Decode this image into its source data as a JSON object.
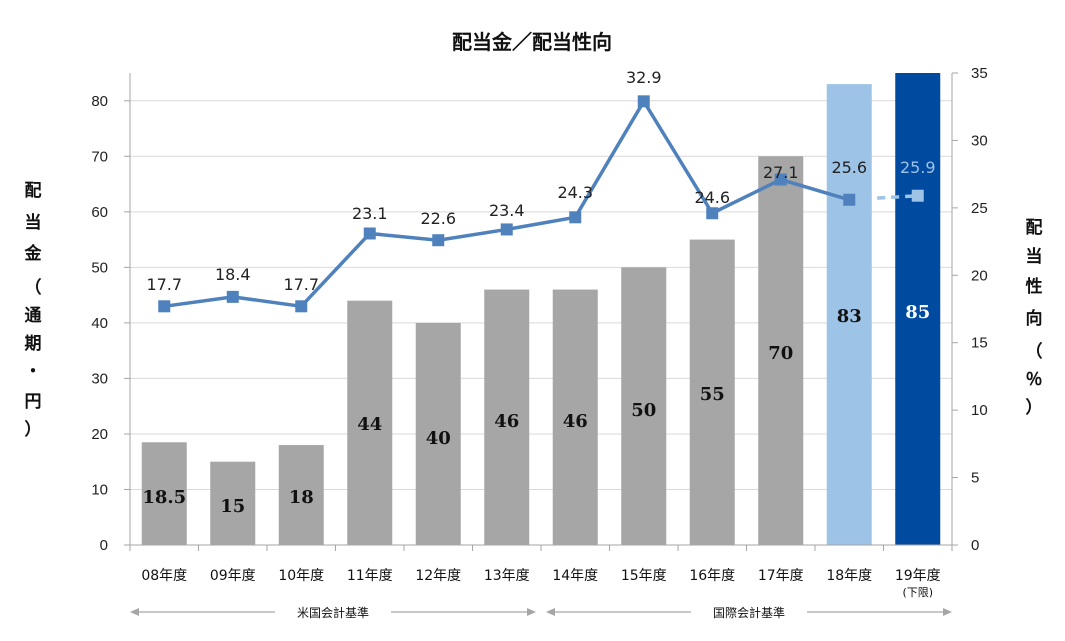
{
  "chart_data": {
    "type": "bar+line",
    "title": "配当金／配当性向",
    "categories": [
      "08年度",
      "09年度",
      "10年度",
      "11年度",
      "12年度",
      "13年度",
      "14年度",
      "15年度",
      "16年度",
      "17年度",
      "18年度",
      "19年度"
    ],
    "category_note": {
      "index": 11,
      "text": "(下限)"
    },
    "bar_series": {
      "name": "配当金",
      "values": [
        18.5,
        15,
        18,
        44,
        40,
        46,
        46,
        50,
        55,
        70,
        83,
        85
      ],
      "labels": [
        "18.5",
        "15",
        "18",
        "44",
        "40",
        "46",
        "46",
        "50",
        "55",
        "70",
        "83",
        "85"
      ],
      "colors": [
        "#a6a6a6",
        "#a6a6a6",
        "#a6a6a6",
        "#a6a6a6",
        "#a6a6a6",
        "#a6a6a6",
        "#a6a6a6",
        "#a6a6a6",
        "#a6a6a6",
        "#a6a6a6",
        "#9dc3e6",
        "#004a9f"
      ],
      "label_colors": [
        "#111111",
        "#111111",
        "#111111",
        "#111111",
        "#111111",
        "#111111",
        "#111111",
        "#111111",
        "#111111",
        "#111111",
        "#111111",
        "#ffffff"
      ]
    },
    "line_series": {
      "name": "配当性向",
      "values": [
        17.7,
        18.4,
        17.7,
        23.1,
        22.6,
        23.4,
        24.3,
        32.9,
        24.6,
        27.1,
        25.6,
        25.9
      ],
      "labels": [
        "17.7",
        "18.4",
        "17.7",
        "23.1",
        "22.6",
        "23.4",
        "24.3",
        "32.9",
        "24.6",
        "27.1",
        "25.6",
        "25.9"
      ],
      "color": "#4f81bd",
      "forecast_color": "#9dc3e6",
      "label_color_highlight": "#9dc3e6"
    },
    "y_left": {
      "label": "配当金（通期・円）",
      "label_chars": [
        "配",
        "当",
        "金",
        "（",
        "通",
        "期",
        "・",
        "円",
        "）"
      ],
      "min": 0,
      "max": 85,
      "ticks": [
        0,
        10,
        20,
        30,
        40,
        50,
        60,
        70,
        80
      ]
    },
    "y_right": {
      "label": "配当性向（％）",
      "label_chars": [
        "配",
        "当",
        "性",
        "向",
        "（",
        "％",
        "）"
      ],
      "min": 0,
      "max": 35,
      "ticks": [
        0,
        5,
        10,
        15,
        20,
        25,
        30,
        35
      ]
    },
    "standards": [
      {
        "label": "米国会計基準",
        "from": 0,
        "to": 5
      },
      {
        "label": "国際会計基準",
        "from": 6,
        "to": 11
      }
    ]
  }
}
